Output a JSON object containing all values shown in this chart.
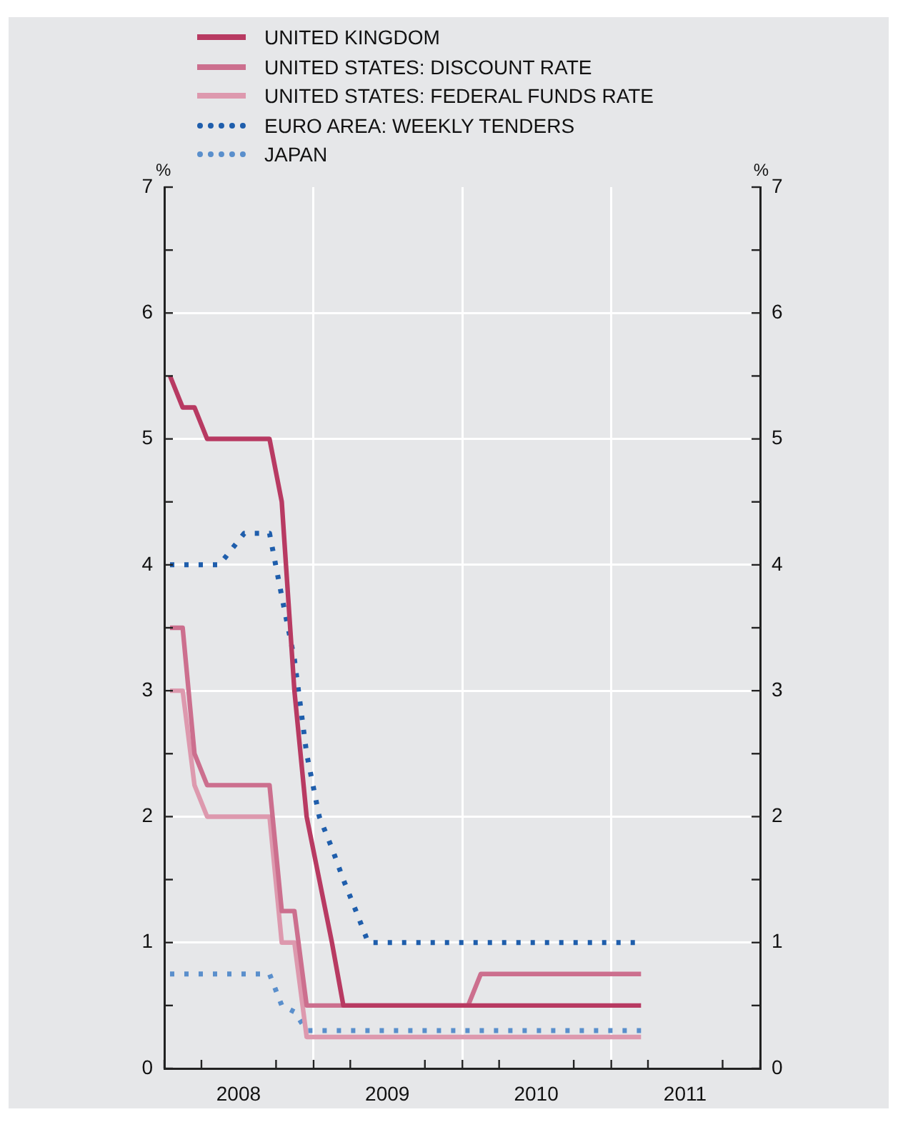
{
  "chart_data": {
    "type": "line",
    "ylabel": "%",
    "y2label": "%",
    "xlim": [
      "2008-01-01",
      "2012-01-01"
    ],
    "xticks": [
      {
        "value": "2008-01-01",
        "label": null
      },
      {
        "value": "2008-04-01",
        "label": null
      },
      {
        "value": "2008-07-01",
        "label": "2008"
      },
      {
        "value": "2008-10-01",
        "label": null
      },
      {
        "value": "2009-01-01",
        "label": null
      },
      {
        "value": "2009-04-01",
        "label": null
      },
      {
        "value": "2009-07-01",
        "label": "2009"
      },
      {
        "value": "2009-10-01",
        "label": null
      },
      {
        "value": "2010-01-01",
        "label": null
      },
      {
        "value": "2010-04-01",
        "label": null
      },
      {
        "value": "2010-07-01",
        "label": "2010"
      },
      {
        "value": "2010-10-01",
        "label": null
      },
      {
        "value": "2011-01-01",
        "label": null
      },
      {
        "value": "2011-04-01",
        "label": null
      },
      {
        "value": "2011-07-01",
        "label": "2011"
      },
      {
        "value": "2011-10-01",
        "label": null
      },
      {
        "value": "2012-01-01",
        "label": null
      }
    ],
    "ylim": [
      0,
      7
    ],
    "yticks": [
      0,
      {
        "value": 0.5,
        "label": null
      },
      1,
      {
        "value": 1.5,
        "label": null
      },
      2,
      {
        "value": 2.5,
        "label": null
      },
      3,
      {
        "value": 3.5,
        "label": null
      },
      4,
      {
        "value": 4.5,
        "label": null
      },
      5,
      {
        "value": 5.5,
        "label": null
      },
      6,
      {
        "value": 6.5,
        "label": null
      },
      7
    ],
    "y2lim": [
      0,
      7
    ],
    "y2ticks": [
      0,
      {
        "value": 0.5,
        "label": null
      },
      1,
      {
        "value": 1.5,
        "label": null
      },
      2,
      {
        "value": 2.5,
        "label": null
      },
      3,
      {
        "value": 3.5,
        "label": null
      },
      4,
      {
        "value": 4.5,
        "label": null
      },
      5,
      {
        "value": 5.5,
        "label": null
      },
      6,
      {
        "value": 6.5,
        "label": null
      },
      7
    ],
    "grid": true,
    "legend": "top left",
    "series": [
      {
        "name": "UNITED KINGDOM",
        "color": "#b83a62",
        "line_style": "solid",
        "x": [
          "2008-01-15",
          "2008-02-15",
          "2008-03-15",
          "2008-04-15",
          "2008-09-15",
          "2008-10-15",
          "2008-11-15",
          "2008-12-15",
          "2009-01-15",
          "2009-02-15",
          "2009-03-15",
          "2011-03-15"
        ],
        "values": [
          5.5,
          5.25,
          5.25,
          5.0,
          5.0,
          4.5,
          3.0,
          2.0,
          1.5,
          1.0,
          0.5,
          0.5
        ]
      },
      {
        "name": "UNITED STATES: DISCOUNT RATE",
        "color": "#cc6f8e",
        "line_style": "solid",
        "x": [
          "2008-01-15",
          "2008-02-15",
          "2008-03-15",
          "2008-04-15",
          "2008-09-15",
          "2008-10-15",
          "2008-11-15",
          "2008-12-15",
          "2010-01-15",
          "2010-02-15",
          "2011-03-15"
        ],
        "values": [
          3.5,
          3.5,
          2.5,
          2.25,
          2.25,
          1.25,
          1.25,
          0.5,
          0.5,
          0.75,
          0.75
        ]
      },
      {
        "name": "UNITED STATES: FEDERAL FUNDS RATE",
        "color": "#dd99ae",
        "line_style": "solid",
        "x": [
          "2008-01-15",
          "2008-02-15",
          "2008-03-15",
          "2008-04-15",
          "2008-09-15",
          "2008-10-15",
          "2008-11-15",
          "2008-12-15",
          "2011-03-15"
        ],
        "values": [
          3.0,
          3.0,
          2.25,
          2.0,
          2.0,
          1.0,
          1.0,
          0.25,
          0.25
        ]
      },
      {
        "name": "EURO AREA: WEEKLY TENDERS",
        "color": "#1f5eac",
        "line_style": "dotted",
        "x": [
          "2008-01-15",
          "2008-05-15",
          "2008-07-15",
          "2008-09-15",
          "2008-10-15",
          "2008-11-15",
          "2008-12-15",
          "2009-01-15",
          "2009-02-15",
          "2009-03-15",
          "2009-04-15",
          "2009-05-15",
          "2011-03-15"
        ],
        "values": [
          4.0,
          4.0,
          4.25,
          4.25,
          3.75,
          3.25,
          2.5,
          2.0,
          1.75,
          1.5,
          1.25,
          1.0,
          1.0
        ]
      },
      {
        "name": "JAPAN",
        "color": "#5a8fcc",
        "line_style": "dotted",
        "x": [
          "2008-01-15",
          "2008-09-15",
          "2008-10-15",
          "2008-11-15",
          "2008-12-15",
          "2011-03-15"
        ],
        "values": [
          0.75,
          0.75,
          0.5,
          0.45,
          0.3,
          0.3
        ]
      }
    ]
  }
}
